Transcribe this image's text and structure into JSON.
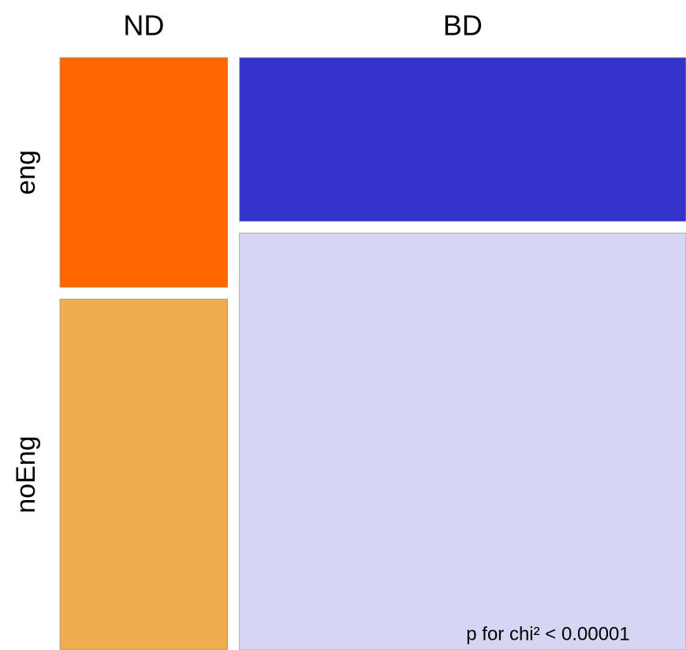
{
  "chart_data": {
    "type": "mosaic",
    "categories": [
      "ND",
      "BD"
    ],
    "series": [
      {
        "name": "eng",
        "colors": [
          "#ff6600",
          "#3333cc"
        ],
        "values": [
          0.108,
          0.205
        ]
      },
      {
        "name": "noEng",
        "colors": [
          "#f0ad50",
          "#d6d6f4"
        ],
        "values": [
          0.165,
          0.522
        ]
      }
    ],
    "annotation": "p for chi² < 0.00001",
    "annotation_color": "#ff0000"
  }
}
